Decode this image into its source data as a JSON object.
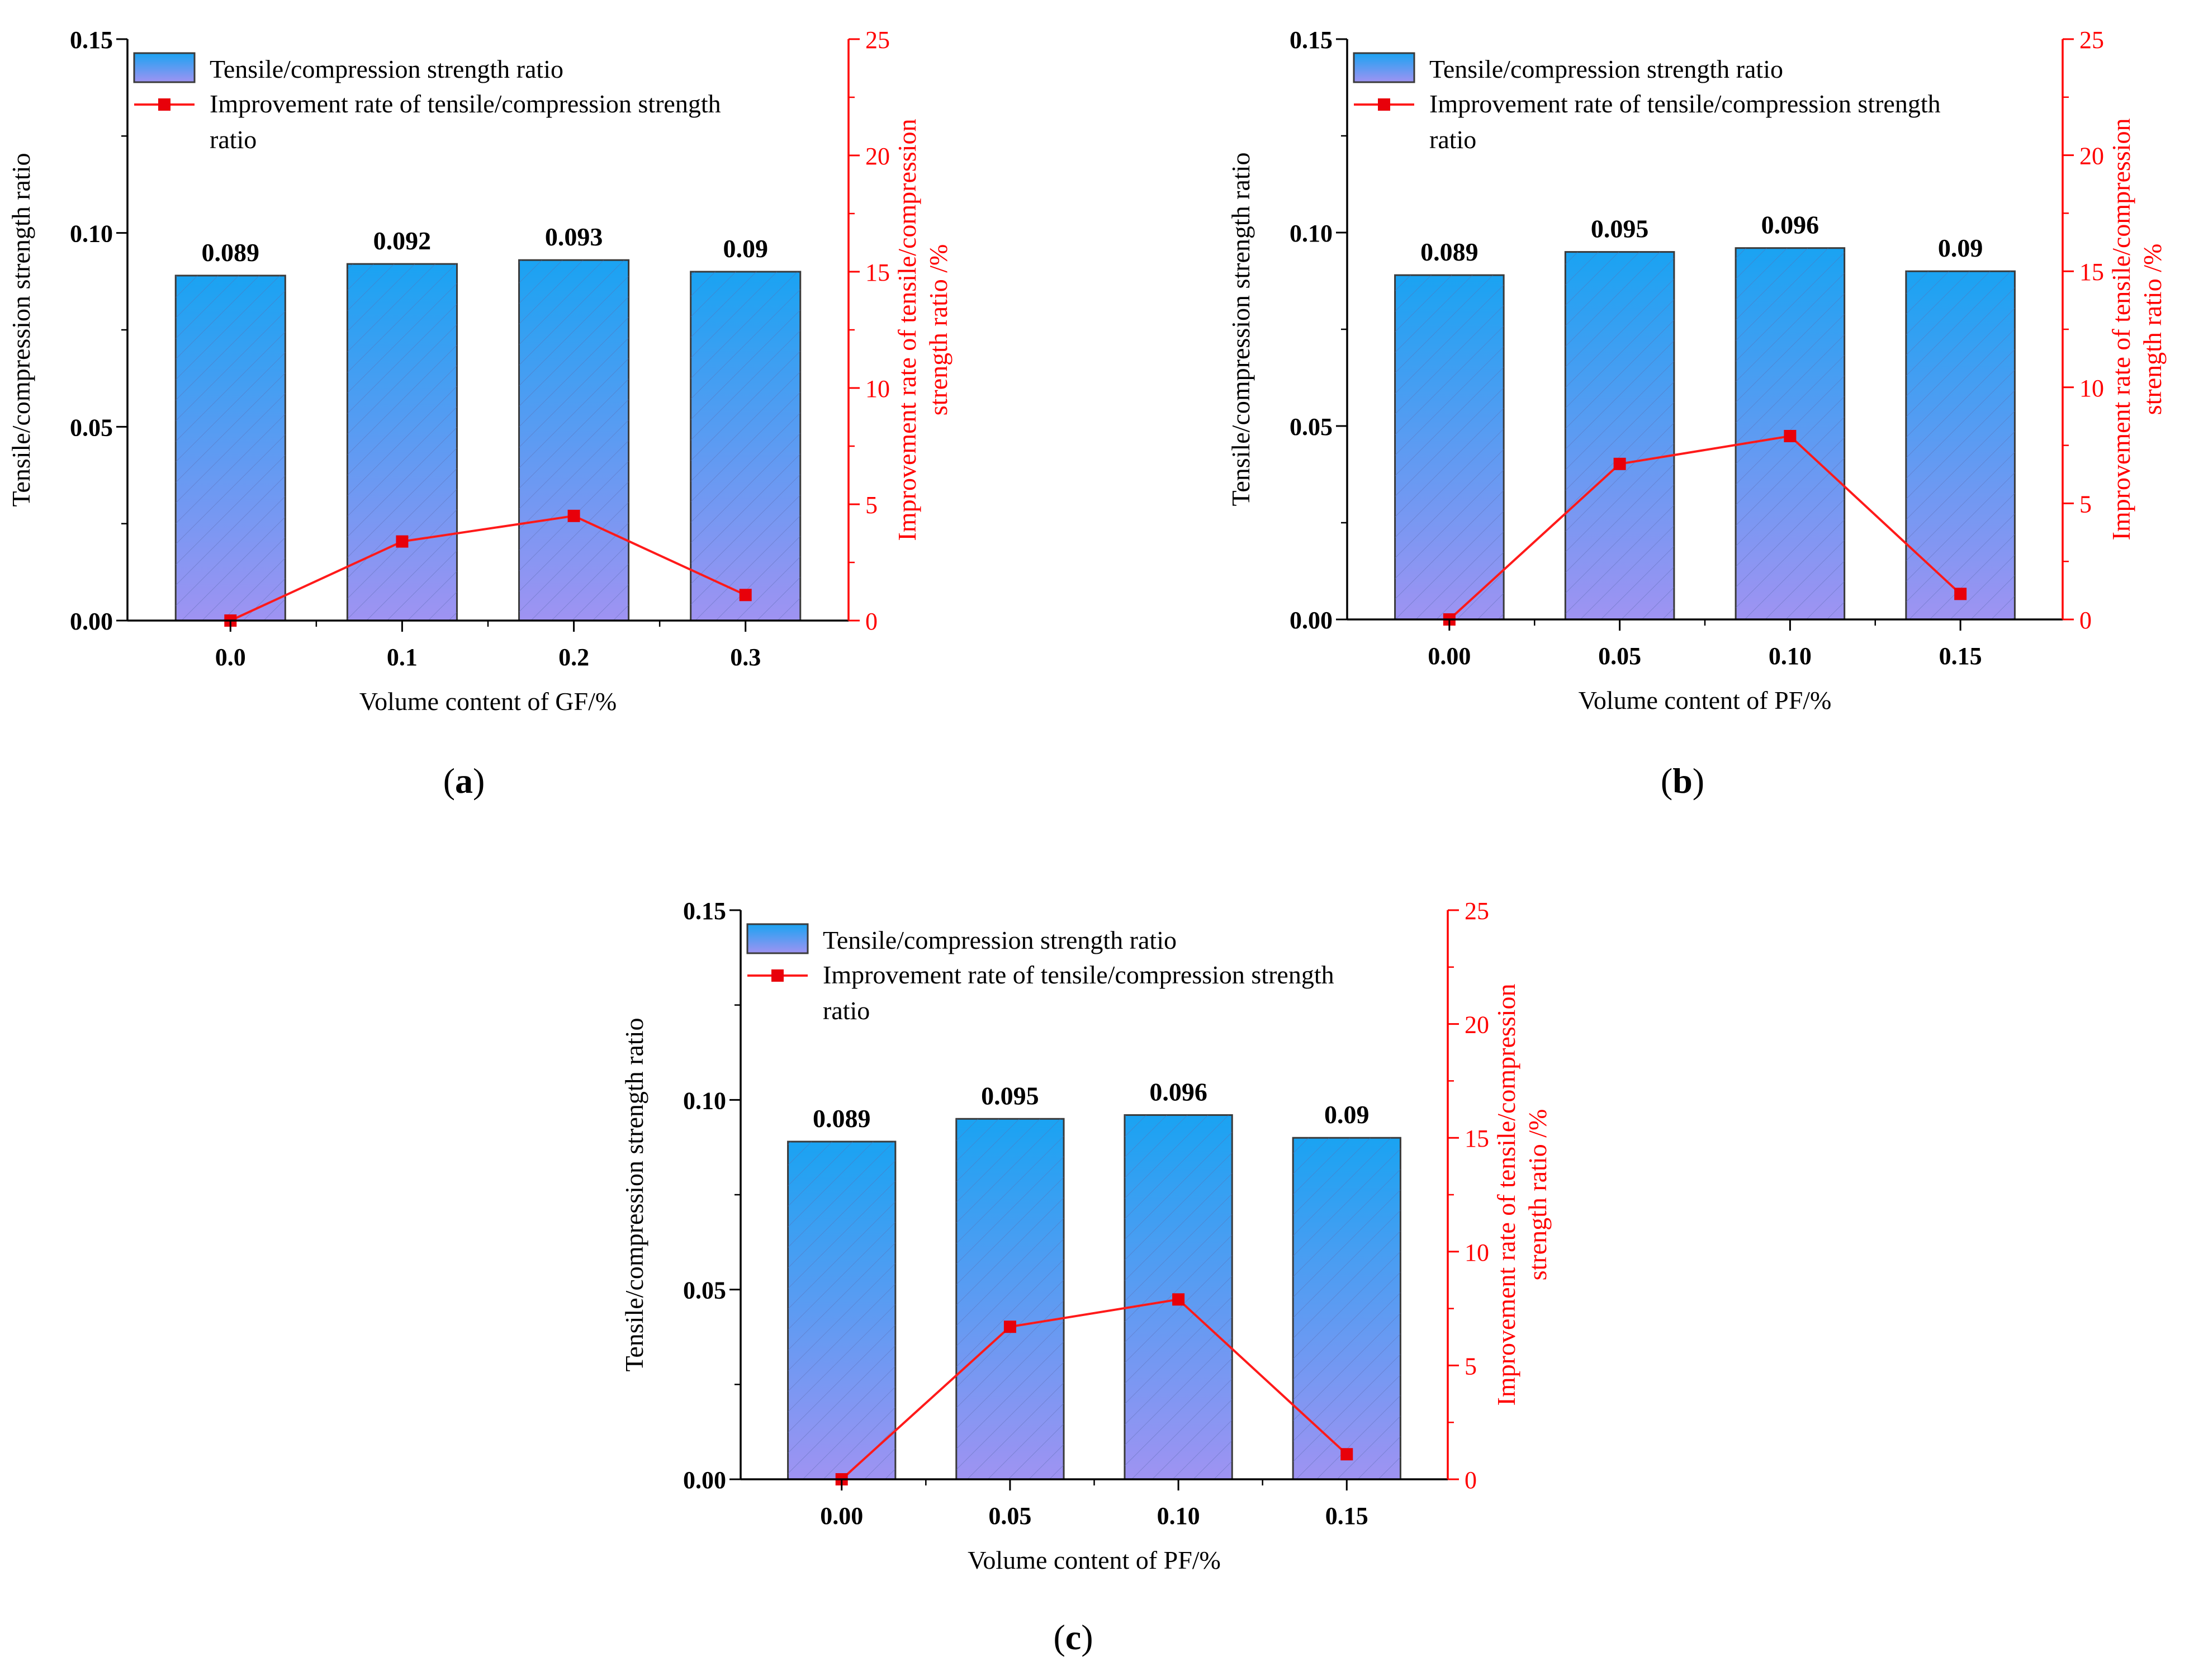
{
  "colors": {
    "bar_top": "#1aa3f2",
    "bar_bottom": "#9f93f2",
    "bar_edge": "#3a3a3a",
    "hatch": "#5a6bb0",
    "line": "#ff1a1a",
    "marker": "#e8000a",
    "right_axis": "#ff0000",
    "text": "#000000"
  },
  "icons": {
    "legend_bar_swatch": "gradient-rect-swatch",
    "legend_line_swatch": "square-marker-line-swatch"
  },
  "chart_data": [
    {
      "type": "bar",
      "panel_label": "a",
      "categories": [
        "0.0",
        "0.1",
        "0.2",
        "0.3"
      ],
      "xlabel": "Volume content of  GF/%",
      "ylabel": "Tensile/compression strength ratio",
      "ylabel_right": [
        "Improvement rate  of tensile/compression",
        "strength ratio /%"
      ],
      "ylim": [
        0,
        0.15
      ],
      "yticks": [
        "0.00",
        "0.05",
        "0.10",
        "0.15"
      ],
      "ylim_right": [
        0,
        25
      ],
      "yticks_right": [
        "0",
        "5",
        "10",
        "15",
        "20",
        "25"
      ],
      "series": [
        {
          "name": "Tensile/compression strength ratio",
          "kind": "bar",
          "axis": "left",
          "values": [
            0.089,
            0.092,
            0.093,
            0.09
          ],
          "labels": [
            "0.089",
            "0.092",
            "0.093",
            "0.09"
          ]
        },
        {
          "name": "Improvement rate  of tensile/compression strength ratio",
          "kind": "line",
          "axis": "right",
          "values": [
            0,
            3.4,
            4.5,
            1.1
          ]
        }
      ],
      "legend": [
        "Tensile/compression strength ratio",
        "Improvement rate  of tensile/compression strength",
        "ratio"
      ]
    },
    {
      "type": "bar",
      "panel_label": "b",
      "categories": [
        "0.00",
        "0.05",
        "0.10",
        "0.15"
      ],
      "xlabel": "Volume content of  PF/%",
      "ylabel": "Tensile/compression strength ratio",
      "ylabel_right": [
        "Improvement rate of tensile/compression",
        "strength ratio /%"
      ],
      "ylim": [
        0,
        0.15
      ],
      "yticks": [
        "0.00",
        "0.05",
        "0.10",
        "0.15"
      ],
      "ylim_right": [
        0,
        25
      ],
      "yticks_right": [
        "0",
        "5",
        "10",
        "15",
        "20",
        "25"
      ],
      "series": [
        {
          "name": "Tensile/compression strength ratio",
          "kind": "bar",
          "axis": "left",
          "values": [
            0.089,
            0.095,
            0.096,
            0.09
          ],
          "labels": [
            "0.089",
            "0.095",
            "0.096",
            "0.09"
          ]
        },
        {
          "name": "Improvement rate of tensile/compression strength ratio",
          "kind": "line",
          "axis": "right",
          "values": [
            0,
            6.7,
            7.9,
            1.1
          ]
        }
      ],
      "legend": [
        "Tensile/compression strength ratio",
        "Improvement rate of tensile/compression strength",
        "ratio"
      ]
    },
    {
      "type": "bar",
      "panel_label": "c",
      "categories": [
        "0.00",
        "0.05",
        "0.10",
        "0.15"
      ],
      "xlabel": "Volume content of  PF/%",
      "ylabel": "Tensile/compression strength ratio",
      "ylabel_right": [
        "Improvement rate of tensile/compression",
        "strength ratio /%"
      ],
      "ylim": [
        0,
        0.15
      ],
      "yticks": [
        "0.00",
        "0.05",
        "0.10",
        "0.15"
      ],
      "ylim_right": [
        0,
        25
      ],
      "yticks_right": [
        "0",
        "5",
        "10",
        "15",
        "20",
        "25"
      ],
      "series": [
        {
          "name": "Tensile/compression strength ratio",
          "kind": "bar",
          "axis": "left",
          "values": [
            0.089,
            0.095,
            0.096,
            0.09
          ],
          "labels": [
            "0.089",
            "0.095",
            "0.096",
            "0.09"
          ]
        },
        {
          "name": "Improvement rate of tensile/compression strength ratio",
          "kind": "line",
          "axis": "right",
          "values": [
            0,
            6.7,
            7.9,
            1.1
          ]
        }
      ],
      "legend": [
        "Tensile/compression strength ratio",
        "Improvement rate of tensile/compression strength",
        "ratio"
      ]
    }
  ]
}
